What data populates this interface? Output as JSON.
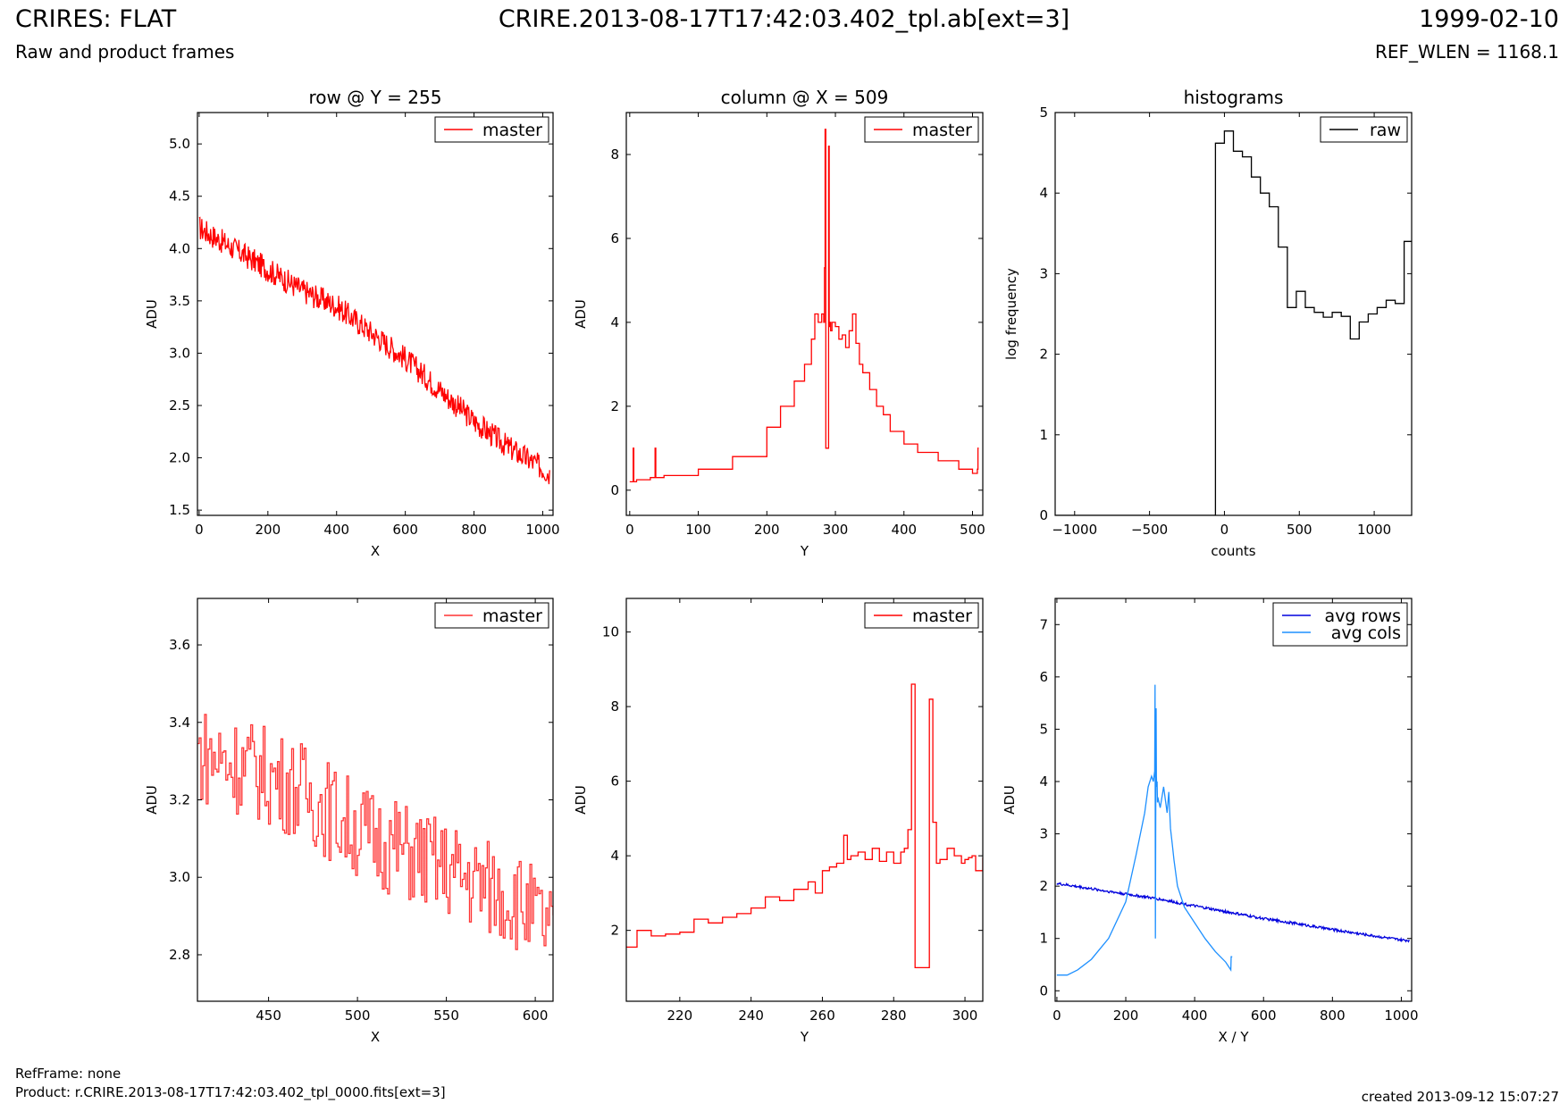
{
  "header": {
    "title": "CRIRES: FLAT",
    "subtitle": "Raw and product frames",
    "center_title": "CRIRE.2013-08-17T17:42:03.402_tpl.ab[ext=3]",
    "date": "1999-02-10",
    "ref_wlen": "REF_WLEN = 1168.1"
  },
  "footer": {
    "ref_frame": "RefFrame: none",
    "product": "Product: r.CRIRE.2013-08-17T17:42:03.402_tpl_0000.fits[ext=3]",
    "created": "created 2013-09-12 15:07:27"
  },
  "colors": {
    "master": "#ff0000",
    "master_zoom": "#ff3333",
    "raw": "#000000",
    "avg_rows": "#0000dd",
    "avg_cols": "#1e90ff"
  },
  "chart_data": [
    {
      "type": "line",
      "title": "row @ Y = 255",
      "xlabel": "X",
      "ylabel": "ADU",
      "xlim": [
        -5,
        1030
      ],
      "ylim": [
        1.45,
        5.3
      ],
      "xticks": [
        0,
        200,
        400,
        600,
        800,
        1000
      ],
      "yticks": [
        1.5,
        2.0,
        2.5,
        3.0,
        3.5,
        4.0,
        4.5,
        5.0
      ],
      "tick_decimals": 1,
      "legend": "top-right",
      "series": [
        {
          "name": "master",
          "color": "#ff0000",
          "noisy": 0.12,
          "step": 1,
          "x": [
            0,
            100,
            200,
            300,
            400,
            500,
            600,
            700,
            800,
            900,
            1000,
            1020
          ],
          "y": [
            4.2,
            4.0,
            3.8,
            3.6,
            3.45,
            3.2,
            2.95,
            2.65,
            2.35,
            2.1,
            1.9,
            1.85
          ]
        }
      ]
    },
    {
      "type": "line",
      "title": "column @ X = 509",
      "xlabel": "Y",
      "ylabel": "ADU",
      "xlim": [
        -5,
        515
      ],
      "ylim": [
        -0.6,
        9.0
      ],
      "xticks": [
        0,
        100,
        200,
        300,
        400,
        500
      ],
      "yticks": [
        0,
        2,
        4,
        6,
        8
      ],
      "tick_decimals": 0,
      "legend": "top-right",
      "series": [
        {
          "name": "master",
          "color": "#ff0000",
          "noisy": 0,
          "step": 1,
          "x": [
            0,
            4,
            5,
            6,
            10,
            30,
            36,
            37,
            38,
            50,
            100,
            150,
            200,
            220,
            240,
            255,
            265,
            270,
            275,
            280,
            283,
            284,
            285,
            286,
            287,
            289,
            290,
            291,
            292,
            293,
            295,
            300,
            305,
            310,
            315,
            320,
            325,
            330,
            335,
            340,
            350,
            360,
            370,
            380,
            400,
            420,
            450,
            480,
            500,
            507,
            508,
            509
          ],
          "y": [
            0.2,
            0.2,
            1.0,
            0.2,
            0.25,
            0.3,
            0.3,
            1.0,
            0.3,
            0.35,
            0.5,
            0.8,
            1.5,
            2.0,
            2.6,
            3.0,
            3.6,
            4.2,
            4.0,
            4.2,
            4.0,
            5.3,
            8.6,
            1.0,
            1.0,
            1.0,
            8.2,
            3.9,
            4.0,
            3.8,
            4.0,
            3.9,
            3.6,
            3.7,
            3.4,
            3.8,
            4.2,
            3.5,
            3.0,
            2.8,
            2.4,
            2.0,
            1.8,
            1.4,
            1.1,
            0.9,
            0.7,
            0.5,
            0.4,
            0.5,
            1.0,
            1.0
          ]
        }
      ]
    },
    {
      "type": "line",
      "title": "histograms",
      "xlabel": "counts",
      "ylabel": "log frequency",
      "xlim": [
        -1130,
        1250
      ],
      "ylim": [
        0,
        5
      ],
      "xticks": [
        -1000,
        -500,
        0,
        500,
        1000
      ],
      "yticks": [
        0,
        1,
        2,
        3,
        4,
        5
      ],
      "tick_decimals": 0,
      "legend": "top-right",
      "series": [
        {
          "name": "raw",
          "color": "#000000",
          "noisy": 0,
          "step": 0,
          "x": [
            -1130,
            -60,
            -60,
            0,
            0,
            60,
            60,
            120,
            120,
            180,
            180,
            240,
            240,
            300,
            300,
            360,
            360,
            420,
            420,
            480,
            480,
            540,
            540,
            600,
            600,
            660,
            660,
            720,
            720,
            780,
            780,
            840,
            840,
            900,
            900,
            960,
            960,
            1020,
            1020,
            1080,
            1080,
            1140,
            1140,
            1200,
            1200,
            1250
          ],
          "y": [
            0,
            0,
            4.62,
            4.62,
            4.77,
            4.77,
            4.52,
            4.52,
            4.45,
            4.45,
            4.2,
            4.2,
            4.0,
            4.0,
            3.83,
            3.83,
            3.33,
            3.33,
            2.58,
            2.58,
            2.78,
            2.78,
            2.58,
            2.58,
            2.52,
            2.52,
            2.46,
            2.46,
            2.52,
            2.52,
            2.47,
            2.47,
            2.19,
            2.19,
            2.4,
            2.4,
            2.5,
            2.5,
            2.58,
            2.58,
            2.67,
            2.67,
            2.63,
            2.63,
            3.4,
            3.4
          ]
        }
      ]
    },
    {
      "type": "line",
      "title": "",
      "xlabel": "X",
      "ylabel": "ADU",
      "xlim": [
        410,
        610
      ],
      "ylim": [
        2.68,
        3.72
      ],
      "xticks": [
        450,
        500,
        550,
        600
      ],
      "yticks": [
        2.8,
        3.0,
        3.2,
        3.4,
        3.6
      ],
      "tick_decimals": 1,
      "legend": "top-right",
      "series": [
        {
          "name": "master",
          "color": "#ff3333",
          "noisy": 0.13,
          "step": 1,
          "x": [
            410,
            440,
            470,
            500,
            530,
            560,
            590,
            610
          ],
          "y": [
            3.32,
            3.28,
            3.22,
            3.12,
            3.06,
            3.0,
            2.94,
            2.85
          ]
        }
      ]
    },
    {
      "type": "line",
      "title": "",
      "xlabel": "Y",
      "ylabel": "ADU",
      "xlim": [
        205,
        305
      ],
      "ylim": [
        0.1,
        10.9
      ],
      "xticks": [
        220,
        240,
        260,
        280,
        300
      ],
      "yticks": [
        2,
        4,
        6,
        8,
        10
      ],
      "tick_decimals": 0,
      "legend": "top-right",
      "series": [
        {
          "name": "master",
          "color": "#ff0000",
          "noisy": 0,
          "step": 1,
          "x": [
            205,
            208,
            212,
            216,
            220,
            224,
            228,
            232,
            236,
            240,
            244,
            248,
            252,
            256,
            258,
            260,
            262,
            264,
            265,
            266,
            267,
            268,
            270,
            272,
            274,
            276,
            278,
            280,
            282,
            283,
            284,
            285,
            286,
            287,
            289,
            290,
            291,
            292,
            293,
            295,
            297,
            299,
            300,
            301,
            302,
            303,
            305
          ],
          "y": [
            1.55,
            2.0,
            1.85,
            1.9,
            1.95,
            2.3,
            2.2,
            2.35,
            2.45,
            2.6,
            2.9,
            2.8,
            3.1,
            3.3,
            3.0,
            3.6,
            3.7,
            3.8,
            3.8,
            4.55,
            3.9,
            4.0,
            4.1,
            3.9,
            4.2,
            3.85,
            4.1,
            3.8,
            4.1,
            4.2,
            4.7,
            8.6,
            1.0,
            1.0,
            1.0,
            8.2,
            4.9,
            3.8,
            3.9,
            4.2,
            4.0,
            3.8,
            3.9,
            3.95,
            4.0,
            3.6,
            3.95
          ]
        }
      ]
    },
    {
      "type": "line",
      "title": "",
      "xlabel": "X / Y",
      "ylabel": "ADU",
      "xlim": [
        -5,
        1030
      ],
      "ylim": [
        -0.2,
        7.5
      ],
      "xticks": [
        0,
        200,
        400,
        600,
        800,
        1000
      ],
      "yticks": [
        0,
        1,
        2,
        3,
        4,
        5,
        6,
        7
      ],
      "tick_decimals": 0,
      "legend": "top-right",
      "series": [
        {
          "name": "avg rows",
          "color": "#0000dd",
          "noisy": 0.025,
          "step": 1,
          "x": [
            0,
            100,
            200,
            300,
            400,
            500,
            600,
            700,
            800,
            900,
            1000,
            1023
          ],
          "y": [
            2.05,
            1.95,
            1.85,
            1.75,
            1.62,
            1.5,
            1.38,
            1.28,
            1.17,
            1.07,
            0.97,
            0.96
          ]
        },
        {
          "name": "avg cols",
          "color": "#1e90ff",
          "noisy": 0,
          "step": 0,
          "x": [
            0,
            30,
            60,
            100,
            150,
            200,
            230,
            255,
            265,
            275,
            280,
            284,
            285,
            286,
            287,
            288,
            289,
            290,
            291,
            292,
            293,
            300,
            310,
            320,
            325,
            330,
            335,
            340,
            350,
            370,
            400,
            430,
            460,
            490,
            505,
            506,
            509
          ],
          "y": [
            0.3,
            0.3,
            0.4,
            0.6,
            1.0,
            1.7,
            2.6,
            3.4,
            3.9,
            4.1,
            4.0,
            4.2,
            5.85,
            1.0,
            3.5,
            5.4,
            4.1,
            3.9,
            4.0,
            3.6,
            3.7,
            3.5,
            3.9,
            3.4,
            3.8,
            3.1,
            2.8,
            2.5,
            2.0,
            1.6,
            1.3,
            1.0,
            0.75,
            0.55,
            0.4,
            0.65,
            0.65
          ]
        }
      ]
    }
  ]
}
